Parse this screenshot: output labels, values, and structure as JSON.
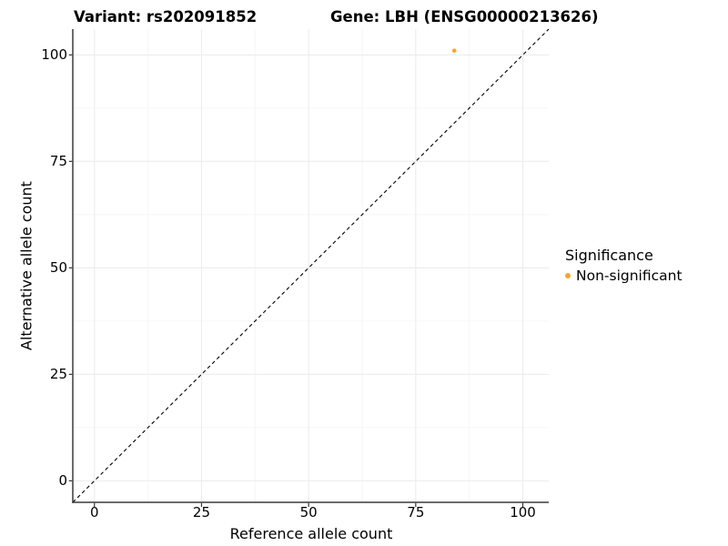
{
  "chart_data": {
    "type": "scatter",
    "title_left": "Variant: rs202091852",
    "title_right": "Gene: LBH (ENSG00000213626)",
    "xlabel": "Reference allele count",
    "ylabel": "Alternative allele count",
    "xlim": [
      -5.05,
      106.05
    ],
    "ylim": [
      -5.05,
      106.05
    ],
    "x_ticks": [
      0,
      25,
      50,
      75,
      100
    ],
    "x_tick_labels": [
      "0",
      "25",
      "50",
      "75",
      "100"
    ],
    "y_ticks": [
      0,
      25,
      50,
      75,
      100
    ],
    "y_tick_labels": [
      "0",
      "25",
      "50",
      "75",
      "100"
    ],
    "x_minor_ticks": [
      12.5,
      37.5,
      62.5,
      87.5
    ],
    "y_minor_ticks": [
      12.5,
      37.5,
      62.5,
      87.5
    ],
    "grid": true,
    "legend_position": "right",
    "series": [
      {
        "name": "Non-significant",
        "color": "#F9A42A",
        "points": [
          {
            "x": 84,
            "y": 101
          }
        ]
      }
    ],
    "reference_line": {
      "type": "identity y=x",
      "style": "dashed",
      "color": "#000000"
    },
    "legend": {
      "title": "Significance",
      "items": [
        {
          "label": "Non-significant",
          "color": "#F9A42A"
        }
      ]
    }
  },
  "style_colors": {
    "background": "#FFFFFF",
    "axis_line": "#3A3A3A",
    "tick_mark": "#333333",
    "grid_major": "#ECECEC",
    "grid_minor": "#F5F5F5",
    "text": "#000000",
    "point": "#F9A42A"
  }
}
